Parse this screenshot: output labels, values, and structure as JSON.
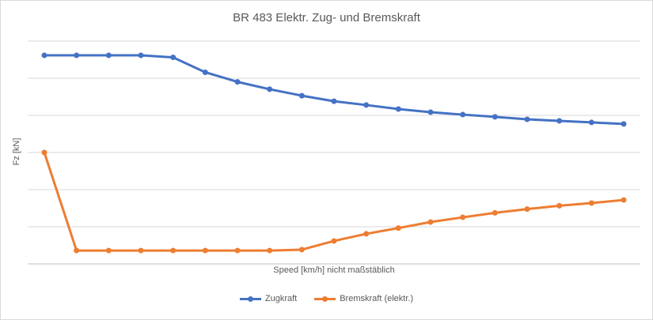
{
  "chart_data": {
    "type": "line",
    "title": "BR 483 Elektr. Zug- und Bremskraft",
    "xlabel": "Speed [km/h] nicht maßstäblich",
    "ylabel": "Fz [kN]",
    "x_axis_note": "no tick labels shown; axis explicitly 'nicht maßstäblich' (not to scale)",
    "y_axis_note": "no tick labels shown; values below are relative units (0 = x-axis line, 100 = top gridline)",
    "x": [
      1,
      2,
      3,
      4,
      5,
      6,
      7,
      8,
      9,
      10,
      11,
      12,
      13,
      14,
      15,
      16,
      17,
      18,
      19
    ],
    "series": [
      {
        "name": "Zugkraft",
        "color": "#4472C4",
        "values": [
          93.6,
          93.6,
          93.6,
          93.6,
          92.7,
          86.0,
          81.7,
          78.4,
          75.5,
          73.0,
          71.3,
          69.5,
          68.1,
          67.0,
          66.0,
          64.9,
          64.2,
          63.5,
          62.8
        ]
      },
      {
        "name": "Bremskraft (elektr.)",
        "color": "#ED7D31",
        "values": [
          50.0,
          6.0,
          6.0,
          6.0,
          6.0,
          6.0,
          6.0,
          6.0,
          6.4,
          10.3,
          13.5,
          16.1,
          18.8,
          20.9,
          22.9,
          24.6,
          26.1,
          27.3,
          28.7
        ]
      }
    ],
    "ylim": [
      0,
      100
    ],
    "grid": "horizontal",
    "gridline_count": 7,
    "gridline_color": "#D9D9D9",
    "axis_line_color": "#BFBFBF",
    "legend_position": "bottom-center",
    "marker": "circle",
    "text_color": "#595959",
    "background_color": "#FFFFFF"
  }
}
